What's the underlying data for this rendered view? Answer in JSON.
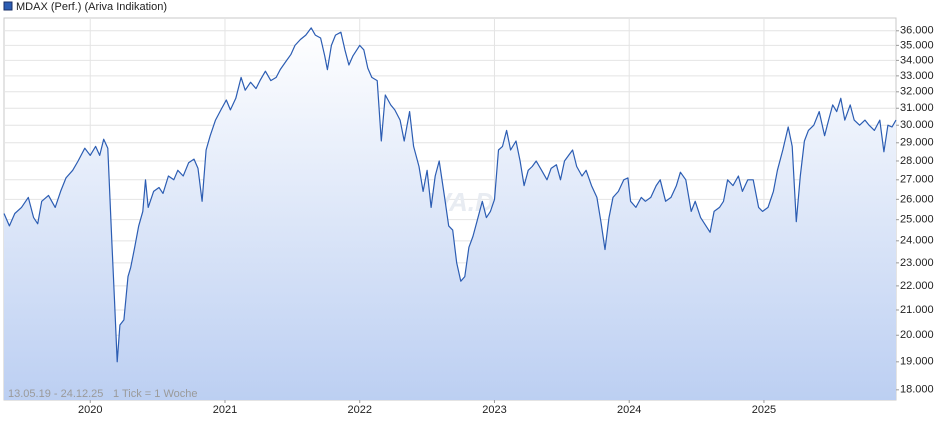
{
  "chart_data": {
    "type": "line",
    "legend": "MDAX (Perf.) (Ariva Indikation)",
    "date_range": "13.05.19 - 24.12.25",
    "tick_note": "1 Tick = 1 Woche",
    "watermark": "ARIVA.DE",
    "yscale": "log",
    "grid": true,
    "legend_position": "top-left",
    "xlim": [
      2019.36,
      2025.98
    ],
    "xticks": [
      2020,
      2021,
      2022,
      2023,
      2024,
      2025
    ],
    "ylim": [
      17650,
      36900
    ],
    "yticks": [
      {
        "value": 18000,
        "label": "18.000"
      },
      {
        "value": 19000,
        "label": "19.000"
      },
      {
        "value": 20000,
        "label": "20.000"
      },
      {
        "value": 21000,
        "label": "21.000"
      },
      {
        "value": 22000,
        "label": "22.000"
      },
      {
        "value": 23000,
        "label": "23.000"
      },
      {
        "value": 24000,
        "label": "24.000"
      },
      {
        "value": 25000,
        "label": "25.000"
      },
      {
        "value": 26000,
        "label": "26.000"
      },
      {
        "value": 27000,
        "label": "27.000"
      },
      {
        "value": 28000,
        "label": "28.000"
      },
      {
        "value": 29000,
        "label": "29.000"
      },
      {
        "value": 30000,
        "label": "30.000"
      },
      {
        "value": 31000,
        "label": "31.000"
      },
      {
        "value": 32000,
        "label": "32.000"
      },
      {
        "value": 33000,
        "label": "33.000"
      },
      {
        "value": 34000,
        "label": "34.000"
      },
      {
        "value": 35000,
        "label": "35.000"
      },
      {
        "value": 36000,
        "label": "36.000"
      }
    ],
    "series": [
      {
        "name": "MDAX (Perf.) (Ariva Indikation)",
        "color": "#2c5db3",
        "x": [
          2019.36,
          2019.4,
          2019.44,
          2019.49,
          2019.54,
          2019.58,
          2019.61,
          2019.64,
          2019.69,
          2019.74,
          2019.78,
          2019.82,
          2019.87,
          2019.91,
          2019.96,
          2020.0,
          2020.04,
          2020.07,
          2020.1,
          2020.13,
          2020.16,
          2020.18,
          2020.2,
          2020.22,
          2020.25,
          2020.28,
          2020.3,
          2020.33,
          2020.36,
          2020.39,
          2020.41,
          2020.43,
          2020.47,
          2020.51,
          2020.54,
          2020.58,
          2020.62,
          2020.65,
          2020.69,
          2020.73,
          2020.77,
          2020.8,
          2020.83,
          2020.86,
          2020.89,
          2020.93,
          2020.97,
          2021.01,
          2021.04,
          2021.08,
          2021.12,
          2021.15,
          2021.19,
          2021.23,
          2021.26,
          2021.3,
          2021.34,
          2021.38,
          2021.41,
          2021.45,
          2021.49,
          2021.52,
          2021.56,
          2021.6,
          2021.64,
          2021.67,
          2021.71,
          2021.74,
          2021.76,
          2021.79,
          2021.82,
          2021.86,
          2021.89,
          2021.92,
          2021.95,
          2022.0,
          2022.03,
          2022.06,
          2022.09,
          2022.13,
          2022.16,
          2022.19,
          2022.23,
          2022.26,
          2022.3,
          2022.33,
          2022.37,
          2022.4,
          2022.44,
          2022.47,
          2022.5,
          2022.53,
          2022.56,
          2022.59,
          2022.63,
          2022.66,
          2022.69,
          2022.72,
          2022.75,
          2022.78,
          2022.81,
          2022.84,
          2022.87,
          2022.91,
          2022.94,
          2022.97,
          2023.0,
          2023.03,
          2023.06,
          2023.09,
          2023.12,
          2023.16,
          2023.19,
          2023.22,
          2023.25,
          2023.28,
          2023.31,
          2023.35,
          2023.39,
          2023.42,
          2023.46,
          2023.49,
          2023.52,
          2023.55,
          2023.58,
          2023.61,
          2023.65,
          2023.68,
          2023.72,
          2023.76,
          2023.79,
          2023.82,
          2023.85,
          2023.88,
          2023.92,
          2023.96,
          2023.99,
          2024.01,
          2024.05,
          2024.09,
          2024.12,
          2024.16,
          2024.2,
          2024.23,
          2024.27,
          2024.31,
          2024.35,
          2024.38,
          2024.42,
          2024.46,
          2024.49,
          2024.53,
          2024.57,
          2024.6,
          2024.63,
          2024.67,
          2024.7,
          2024.73,
          2024.77,
          2024.81,
          2024.84,
          2024.88,
          2024.92,
          2024.96,
          2024.99,
          2025.03,
          2025.07,
          2025.1,
          2025.14,
          2025.18,
          2025.21,
          2025.24,
          2025.27,
          2025.3,
          2025.33,
          2025.37,
          2025.41,
          2025.45,
          2025.48,
          2025.51,
          2025.54,
          2025.57,
          2025.6,
          2025.64,
          2025.67,
          2025.71,
          2025.75,
          2025.78,
          2025.82,
          2025.86,
          2025.89,
          2025.92,
          2025.95,
          2025.98
        ],
        "values": [
          25300,
          24700,
          25300,
          25600,
          26100,
          25100,
          24800,
          25900,
          26200,
          25600,
          26400,
          27100,
          27500,
          28000,
          28700,
          28300,
          28800,
          28300,
          29200,
          28700,
          24000,
          21400,
          19000,
          20400,
          20600,
          22400,
          22800,
          23700,
          24700,
          25400,
          27000,
          25600,
          26400,
          26600,
          26300,
          27200,
          27000,
          27500,
          27200,
          27900,
          28100,
          27600,
          25900,
          28600,
          29400,
          30300,
          30900,
          31500,
          30900,
          31600,
          32900,
          32100,
          32600,
          32200,
          32700,
          33300,
          32700,
          32900,
          33400,
          33900,
          34400,
          35000,
          35400,
          35700,
          36200,
          35700,
          35500,
          34300,
          33400,
          35000,
          35700,
          35900,
          34700,
          33700,
          34300,
          35000,
          34700,
          33500,
          32900,
          32700,
          29100,
          31800,
          31200,
          30900,
          30300,
          29100,
          30800,
          28800,
          27700,
          26400,
          27500,
          25600,
          27200,
          28000,
          26100,
          24700,
          24500,
          23000,
          22200,
          22400,
          23700,
          24200,
          24900,
          25900,
          25100,
          25400,
          26000,
          28600,
          28800,
          29700,
          28600,
          29100,
          28000,
          26700,
          27500,
          27700,
          28000,
          27500,
          27000,
          27600,
          27800,
          27000,
          28000,
          28300,
          28600,
          27700,
          27200,
          27500,
          26700,
          26100,
          24900,
          23600,
          25100,
          26100,
          26400,
          27000,
          27100,
          25900,
          25600,
          26100,
          25900,
          26100,
          26700,
          27000,
          25900,
          26100,
          26700,
          27400,
          27000,
          25400,
          25900,
          25100,
          24700,
          24400,
          25400,
          25600,
          25900,
          27000,
          26700,
          27200,
          26400,
          27000,
          27000,
          25600,
          25400,
          25600,
          26400,
          27500,
          28600,
          29900,
          28800,
          24900,
          27200,
          29100,
          29700,
          30000,
          30800,
          29400,
          30300,
          31200,
          30800,
          31600,
          30300,
          31200,
          30300,
          30000,
          30300,
          30000,
          29700,
          30300,
          28500,
          30000,
          29900,
          30300
        ]
      }
    ]
  }
}
